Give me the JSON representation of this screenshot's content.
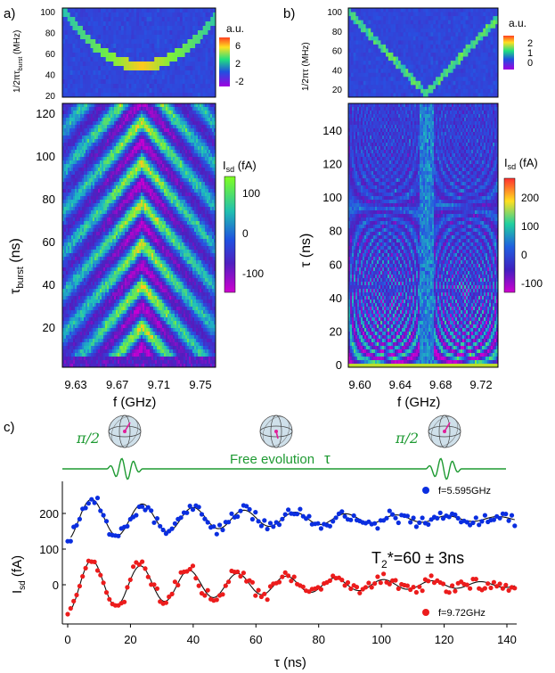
{
  "panels": {
    "a": {
      "label": "a)",
      "top": {
        "ylabel_main": "1/2πτ",
        "ylabel_sub": "burst",
        "ylabel_unit": " (MHz)",
        "yticks": [
          "100",
          "80",
          "60",
          "40",
          "20"
        ],
        "legend_title": "a.u.",
        "legend_ticks": [
          "6",
          "2",
          "-2"
        ]
      },
      "bottom": {
        "ylabel_main": "τ",
        "ylabel_sub": "burst",
        "ylabel_unit": " (ns)",
        "yticks": [
          "120",
          "100",
          "80",
          "60",
          "40",
          "20"
        ],
        "xticks": [
          "9.63",
          "9.67",
          "9.71",
          "9.75"
        ],
        "xlabel": "f (GHz)",
        "legend_title_main": "I",
        "legend_title_sub": "sd",
        "legend_title_unit": " (fA)",
        "legend_ticks": [
          "100",
          "0",
          "-100"
        ]
      }
    },
    "b": {
      "label": "b)",
      "top": {
        "ylabel_main": "1/2πτ",
        "ylabel_unit": " (MHz)",
        "yticks": [
          "100",
          "80",
          "60",
          "40",
          "20"
        ],
        "legend_title": "a.u.",
        "legend_ticks": [
          "2",
          "1",
          "0"
        ]
      },
      "bottom": {
        "ylabel": "τ (ns)",
        "yticks": [
          "140",
          "120",
          "100",
          "80",
          "60",
          "40",
          "20",
          "0"
        ],
        "xticks": [
          "9.60",
          "9.64",
          "9.68",
          "9.72"
        ],
        "xlabel": "f (GHz)",
        "legend_title_main": "I",
        "legend_title_sub": "sd",
        "legend_title_unit": " (fA)",
        "legend_ticks": [
          "200",
          "100",
          "0",
          "-100"
        ]
      }
    },
    "c": {
      "label": "c)",
      "pulse_left": "π/2",
      "pulse_right": "π/2",
      "free_evolution": "Free evolution",
      "tau_symbol": "τ",
      "t2_label": "T",
      "t2_sub": "2",
      "t2_value": "*=60 ± 3ns",
      "ylabel_main": "I",
      "ylabel_sub": "sd",
      "ylabel_unit": " (fA)",
      "xlabel": "τ (ns)",
      "yticks": [
        "200",
        "100",
        "0"
      ],
      "xticks": [
        "0",
        "20",
        "40",
        "60",
        "80",
        "100",
        "120",
        "140"
      ]
    }
  },
  "chart_data": [
    {
      "type": "line",
      "panel": "c",
      "xlabel": "τ (ns)",
      "ylabel": "Isd (fA)",
      "xlim": [
        -1,
        150
      ],
      "ylim": [
        -105,
        290
      ],
      "series": [
        {
          "name": "f=5.595GHz",
          "color": "#0a2ee0",
          "offset": 185,
          "amplitude": 62,
          "period": 16.2,
          "T2": 60,
          "phase": 3.3
        },
        {
          "name": "f=9.72GHz",
          "color": "#ec1c1c",
          "offset": 0,
          "amplitude": 78,
          "period": 15.5,
          "T2": 60,
          "phase": 3.14
        }
      ]
    },
    {
      "type": "heatmap",
      "panel": "a-bottom",
      "xlabel": "f (GHz)",
      "ylabel": "τburst (ns)",
      "xlim": [
        9.62,
        9.77
      ],
      "ylim": [
        0,
        125
      ],
      "center_f": 9.69,
      "colorbar_range": [
        -150,
        150
      ]
    },
    {
      "type": "heatmap",
      "panel": "b-bottom",
      "xlabel": "f (GHz)",
      "ylabel": "τ (ns)",
      "xlim": [
        9.59,
        9.735
      ],
      "ylim": [
        0,
        155
      ],
      "center_f": 9.665,
      "colorbar_range": [
        -120,
        260
      ]
    }
  ]
}
